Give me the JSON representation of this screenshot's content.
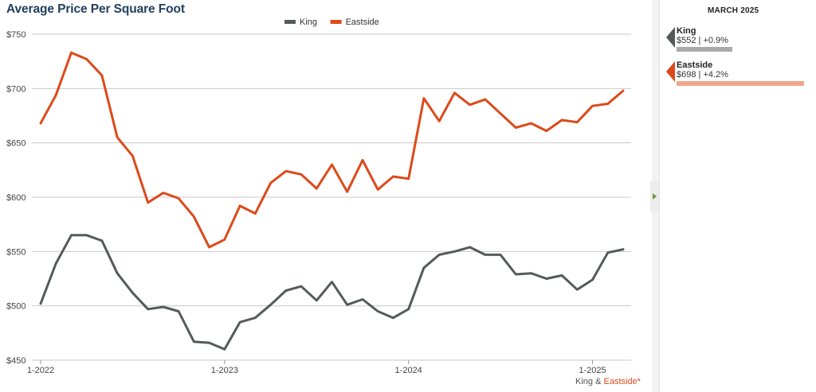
{
  "chart_data": {
    "type": "line",
    "title": "Average Price Per Square Foot",
    "xlabel": "",
    "ylabel": "",
    "y_ticks": [
      "$750",
      "$700",
      "$650",
      "$600",
      "$550",
      "$500",
      "$450"
    ],
    "y_tick_values": [
      750,
      700,
      650,
      600,
      550,
      500,
      450
    ],
    "x_ticks": [
      "1-2022",
      "1-2023",
      "1-2024",
      "1-2025"
    ],
    "x_tick_index": [
      0,
      12,
      24,
      36
    ],
    "ylim": [
      450,
      750
    ],
    "grid": true,
    "legend_position": "top",
    "x": [
      "1-2022",
      "2-2022",
      "3-2022",
      "4-2022",
      "5-2022",
      "6-2022",
      "7-2022",
      "8-2022",
      "9-2022",
      "10-2022",
      "11-2022",
      "12-2022",
      "1-2023",
      "2-2023",
      "3-2023",
      "4-2023",
      "5-2023",
      "6-2023",
      "7-2023",
      "8-2023",
      "9-2023",
      "10-2023",
      "11-2023",
      "12-2023",
      "1-2024",
      "2-2024",
      "3-2024",
      "4-2024",
      "5-2024",
      "6-2024",
      "7-2024",
      "8-2024",
      "9-2024",
      "10-2024",
      "11-2024",
      "12-2024",
      "1-2025",
      "2-2025",
      "3-2025"
    ],
    "series": [
      {
        "name": "King",
        "color": "#555b56",
        "values": [
          502,
          539,
          565,
          565,
          560,
          530,
          512,
          497,
          499,
          495,
          467,
          466,
          460,
          485,
          489,
          501,
          514,
          518,
          505,
          522,
          501,
          506,
          495,
          489,
          497,
          535,
          547,
          550,
          554,
          547,
          547,
          529,
          530,
          525,
          528,
          515,
          524,
          549,
          552
        ]
      },
      {
        "name": "Eastside",
        "color": "#dc4a1a",
        "values": [
          668,
          694,
          733,
          727,
          712,
          655,
          638,
          595,
          604,
          599,
          582,
          554,
          561,
          592,
          585,
          613,
          624,
          621,
          608,
          630,
          605,
          634,
          607,
          619,
          617,
          691,
          670,
          696,
          685,
          690,
          677,
          664,
          668,
          661,
          671,
          669,
          684,
          686,
          698
        ]
      }
    ]
  },
  "footnote": {
    "part1": "King &",
    "part2": "Eastside*",
    "part2_color": "#dc4a1a"
  },
  "side_panel": {
    "period": "MARCH 2025",
    "items": [
      {
        "name": "King",
        "value": "$552 | +0.9%",
        "marker_color": "#555b56",
        "bar_color": "#a9abaa",
        "bar_fraction": 0.44
      },
      {
        "name": "Eastside",
        "value": "$698 | +4.2%",
        "marker_color": "#dc4a1a",
        "bar_color": "#f0a58a",
        "bar_fraction": 1.0
      }
    ]
  }
}
